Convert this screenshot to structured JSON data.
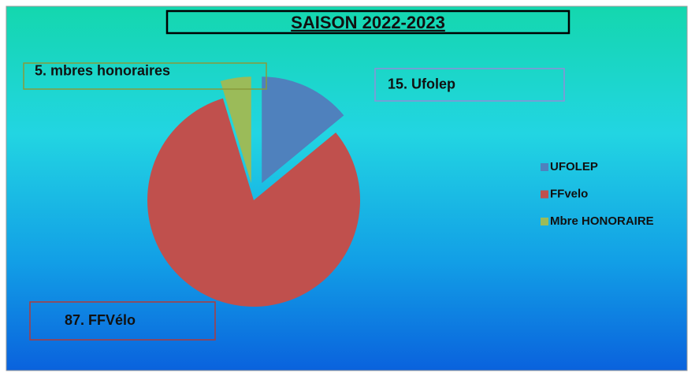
{
  "chart_data": {
    "type": "pie",
    "title": "SAISON 2022-2023",
    "categories": [
      "UFOLEP",
      "FFvelo",
      "Mbre HONORAIRE"
    ],
    "values": [
      15,
      87,
      5
    ],
    "value_labels": [
      "15. Ufolep",
      "87. FFVélo",
      "5.  mbres honoraires"
    ],
    "colors": [
      "#4f81bd",
      "#c0504d",
      "#9bbb59"
    ],
    "legend": "right"
  }
}
